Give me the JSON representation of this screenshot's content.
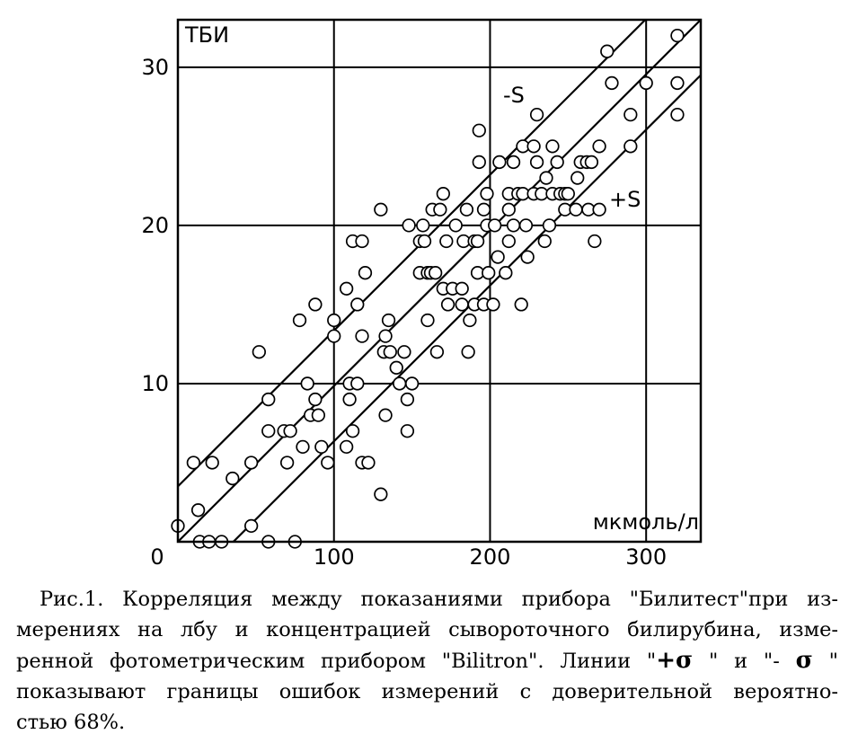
{
  "chart_data": {
    "type": "scatter",
    "title": "",
    "ylabel": "ТБИ",
    "xlabel": "мкмоль/л",
    "xlim": [
      0,
      335
    ],
    "ylim": [
      0,
      33
    ],
    "x_ticks": [
      "100",
      "200",
      "300"
    ],
    "y_ticks": [
      "10",
      "20",
      "30"
    ],
    "origin_label": "0",
    "grid": true,
    "points": [
      [
        0,
        1
      ],
      [
        10,
        5
      ],
      [
        13,
        2
      ],
      [
        14,
        0
      ],
      [
        20,
        0
      ],
      [
        22,
        5
      ],
      [
        28,
        0
      ],
      [
        35,
        4
      ],
      [
        47,
        5
      ],
      [
        47,
        1
      ],
      [
        52,
        12
      ],
      [
        58,
        7
      ],
      [
        58,
        9
      ],
      [
        58,
        0
      ],
      [
        68,
        7
      ],
      [
        70,
        5
      ],
      [
        72,
        7
      ],
      [
        75,
        0
      ],
      [
        78,
        14
      ],
      [
        80,
        6
      ],
      [
        83,
        10
      ],
      [
        85,
        8
      ],
      [
        88,
        15
      ],
      [
        88,
        9
      ],
      [
        90,
        8
      ],
      [
        92,
        6
      ],
      [
        96,
        5
      ],
      [
        100,
        13
      ],
      [
        100,
        14
      ],
      [
        108,
        16
      ],
      [
        108,
        6
      ],
      [
        110,
        9
      ],
      [
        110,
        10
      ],
      [
        112,
        19
      ],
      [
        112,
        7
      ],
      [
        115,
        10
      ],
      [
        115,
        15
      ],
      [
        118,
        5
      ],
      [
        118,
        19
      ],
      [
        118,
        13
      ],
      [
        120,
        17
      ],
      [
        122,
        5
      ],
      [
        130,
        21
      ],
      [
        130,
        3
      ],
      [
        132,
        12
      ],
      [
        133,
        8
      ],
      [
        133,
        13
      ],
      [
        135,
        14
      ],
      [
        136,
        12
      ],
      [
        140,
        11
      ],
      [
        142,
        10
      ],
      [
        145,
        12
      ],
      [
        147,
        9
      ],
      [
        147,
        7
      ],
      [
        148,
        20
      ],
      [
        150,
        10
      ],
      [
        155,
        17
      ],
      [
        155,
        19
      ],
      [
        157,
        20
      ],
      [
        158,
        19
      ],
      [
        160,
        17
      ],
      [
        160,
        14
      ],
      [
        162,
        17
      ],
      [
        163,
        21
      ],
      [
        165,
        17
      ],
      [
        166,
        12
      ],
      [
        168,
        21
      ],
      [
        170,
        16
      ],
      [
        170,
        22
      ],
      [
        172,
        19
      ],
      [
        173,
        15
      ],
      [
        176,
        16
      ],
      [
        178,
        20
      ],
      [
        182,
        15
      ],
      [
        182,
        16
      ],
      [
        183,
        19
      ],
      [
        185,
        21
      ],
      [
        186,
        12
      ],
      [
        187,
        14
      ],
      [
        190,
        15
      ],
      [
        190,
        19
      ],
      [
        192,
        17
      ],
      [
        192,
        19
      ],
      [
        193,
        24
      ],
      [
        193,
        26
      ],
      [
        196,
        21
      ],
      [
        196,
        15
      ],
      [
        198,
        20
      ],
      [
        198,
        22
      ],
      [
        199,
        17
      ],
      [
        202,
        15
      ],
      [
        203,
        20
      ],
      [
        205,
        18
      ],
      [
        206,
        24
      ],
      [
        210,
        17
      ],
      [
        212,
        19
      ],
      [
        212,
        21
      ],
      [
        212,
        22
      ],
      [
        215,
        20
      ],
      [
        215,
        24
      ],
      [
        218,
        22
      ],
      [
        220,
        15
      ],
      [
        221,
        22
      ],
      [
        221,
        25
      ],
      [
        223,
        20
      ],
      [
        224,
        18
      ],
      [
        228,
        22
      ],
      [
        228,
        25
      ],
      [
        230,
        24
      ],
      [
        230,
        27
      ],
      [
        233,
        22
      ],
      [
        235,
        19
      ],
      [
        236,
        23
      ],
      [
        238,
        20
      ],
      [
        240,
        22
      ],
      [
        240,
        25
      ],
      [
        243,
        24
      ],
      [
        245,
        22
      ],
      [
        248,
        22
      ],
      [
        248,
        21
      ],
      [
        250,
        22
      ],
      [
        255,
        21
      ],
      [
        256,
        23
      ],
      [
        258,
        24
      ],
      [
        262,
        24
      ],
      [
        263,
        21
      ],
      [
        265,
        24
      ],
      [
        267,
        19
      ],
      [
        270,
        21
      ],
      [
        270,
        25
      ],
      [
        275,
        31
      ],
      [
        278,
        29
      ],
      [
        290,
        27
      ],
      [
        290,
        25
      ],
      [
        300,
        29
      ],
      [
        320,
        32
      ],
      [
        320,
        29
      ],
      [
        320,
        27
      ]
    ],
    "lines": [
      {
        "label": "-S",
        "x": [
          0,
          335
        ],
        "y": [
          3.5,
          36.5
        ]
      },
      {
        "label": "",
        "x": [
          0,
          335
        ],
        "y": [
          0,
          33
        ]
      },
      {
        "label": "+S",
        "x": [
          0,
          335
        ],
        "y": [
          -3.5,
          29.5
        ]
      }
    ],
    "annotations": [
      "-S",
      "+S"
    ]
  },
  "caption": {
    "lines": [
      "Рис.1. Корреляция между показаниями прибора \"Билитест\"при из-",
      "мерениях на лбу и концентрацией сывороточного билирубина, изме-",
      "ренной фотометрическим прибором \"Bilitron\". Линии \"",
      "показывают границы ошибок измерений с доверительной вероятно-",
      "стью 68%."
    ],
    "line3_sym1": "+σ",
    "line3_mid": " \" и \"- ",
    "line3_sym2": "σ",
    "line3_end": " \""
  }
}
